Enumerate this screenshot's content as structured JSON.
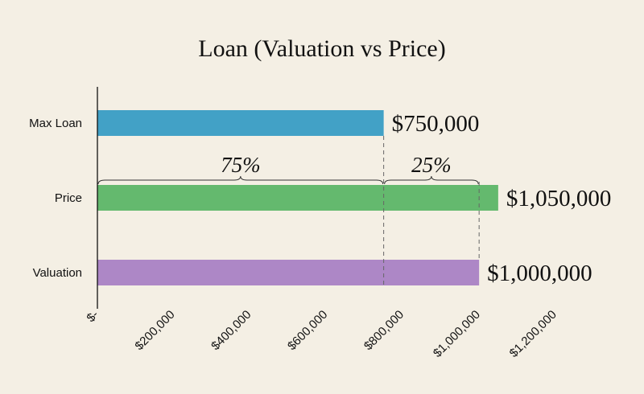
{
  "chart_data": {
    "type": "bar",
    "orientation": "horizontal",
    "title": "Loan (Valuation vs Price)",
    "categories": [
      "Max Loan",
      "Price",
      "Valuation"
    ],
    "values": [
      750000,
      1050000,
      1000000
    ],
    "data_labels": [
      "$750,000",
      "$1,050,000",
      "$1,000,000"
    ],
    "colors": [
      "#42a1c6",
      "#64b96e",
      "#ad87c6"
    ],
    "xlim": [
      0,
      1200000
    ],
    "x_ticks": [
      0,
      200000,
      400000,
      600000,
      800000,
      1000000,
      1200000
    ],
    "x_tick_labels": [
      "$-",
      "$200,000",
      "$400,000",
      "$600,000",
      "$800,000",
      "$1,000,000",
      "$1,200,000"
    ],
    "grid": false,
    "annotations": [
      {
        "text": "75%",
        "from": 0,
        "to": 750000
      },
      {
        "text": "25%",
        "from": 750000,
        "to": 1000000
      }
    ]
  }
}
